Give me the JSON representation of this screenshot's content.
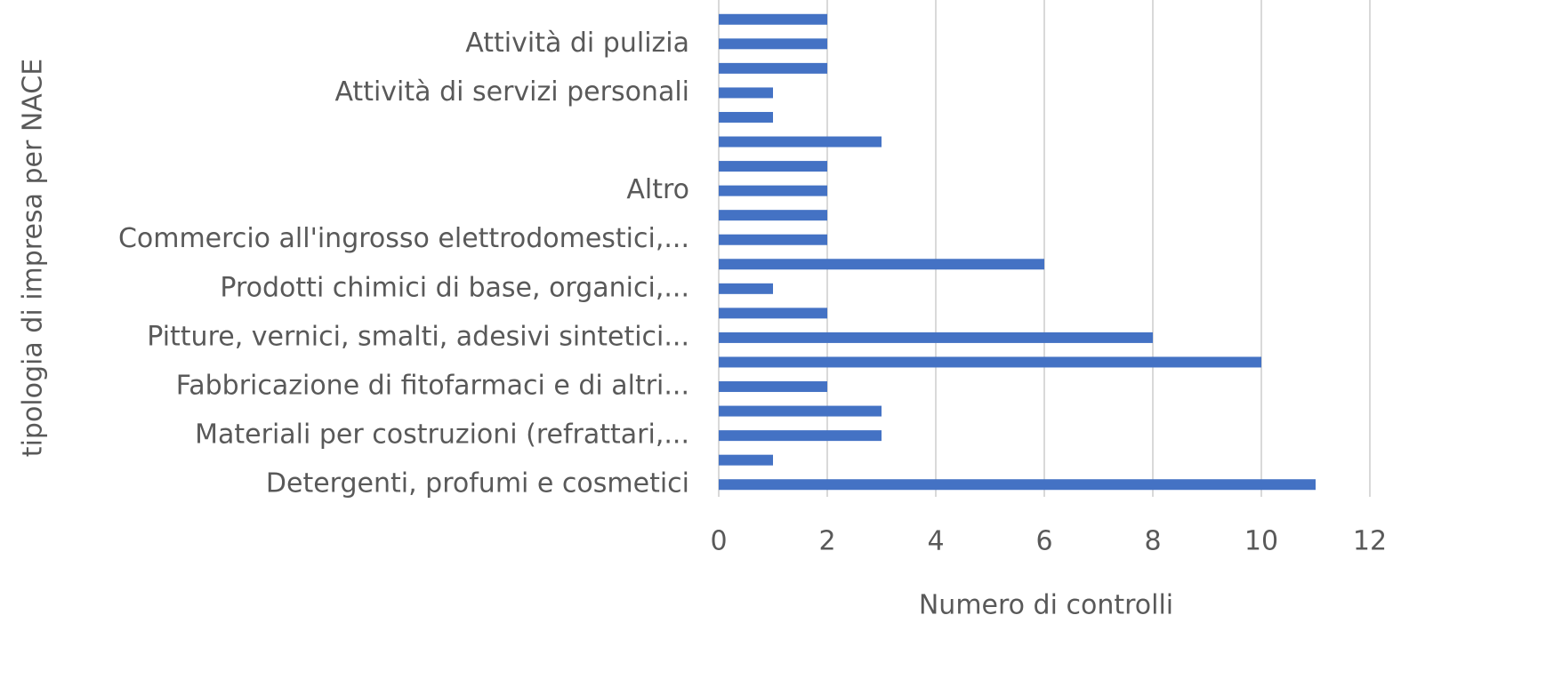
{
  "chart_data": {
    "type": "barh",
    "xlabel": "Numero di controlli",
    "ylabel": "tipologia di impresa per NACE",
    "categories": [
      "Detergenti, profumi e cosmetici",
      null,
      "Materiali per costruzioni (refrattari,...",
      null,
      "Fabbricazione di fitofarmaci e di altri...",
      null,
      "Pitture, vernici, smalti, adesivi sintetici...",
      null,
      "Prodotti chimici di base, organici,...",
      null,
      "Commercio all'ingrosso elettrodomestici,...",
      null,
      "Altro",
      null,
      null,
      null,
      "Attività di servizi personali",
      null,
      "Attività di pulizia",
      null
    ],
    "values": [
      11,
      1,
      3,
      3,
      2,
      10,
      8,
      2,
      1,
      6,
      2,
      2,
      2,
      2,
      3,
      1,
      1,
      2,
      2,
      2
    ],
    "color": "#4472c4",
    "xlim": [
      0,
      12
    ],
    "xticks": [
      0,
      2,
      4,
      6,
      8,
      10,
      12
    ],
    "grid": true
  }
}
